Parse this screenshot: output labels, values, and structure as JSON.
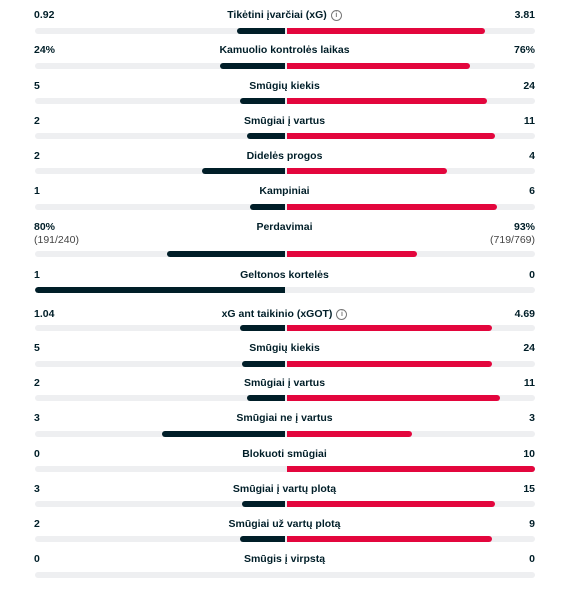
{
  "colors": {
    "home": "#001e28",
    "away": "#e3063d",
    "track": "#eeeff1"
  },
  "stats": [
    {
      "label": "Tikėtini įvarčiai (xG)",
      "home": "0.92",
      "away": "3.81",
      "home_share": 0.19,
      "away_share": 0.79,
      "info": true
    },
    {
      "label": "Kamuolio kontrolės laikas",
      "home": "24%",
      "away": "76%",
      "home_share": 0.26,
      "away_share": 0.73
    },
    {
      "label": "Smūgių kiekis",
      "home": "5",
      "away": "24",
      "home_share": 0.18,
      "away_share": 0.8
    },
    {
      "label": "Smūgiai į vartus",
      "home": "2",
      "away": "11",
      "home_share": 0.15,
      "away_share": 0.83
    },
    {
      "label": "Didelės progos",
      "home": "2",
      "away": "4",
      "home_share": 0.33,
      "away_share": 0.64
    },
    {
      "label": "Kampiniai",
      "home": "1",
      "away": "6",
      "home_share": 0.14,
      "away_share": 0.84
    },
    {
      "label": "Perdavimai",
      "home": "80%",
      "away": "93%",
      "home_sub": "(191/240)",
      "away_sub": "(719/769)",
      "home_share": 0.47,
      "away_share": 0.52
    },
    {
      "label": "Geltonos kortelės",
      "home": "1",
      "away": "0",
      "home_share": 1.0,
      "away_share": 0.0
    },
    {
      "label": "xG ant taikinio (xGOT)",
      "home": "1.04",
      "away": "4.69",
      "home_share": 0.18,
      "away_share": 0.82,
      "info": true
    },
    {
      "label": "Smūgių kiekis",
      "home": "5",
      "away": "24",
      "home_share": 0.17,
      "away_share": 0.82
    },
    {
      "label": "Smūgiai į vartus",
      "home": "2",
      "away": "11",
      "home_share": 0.15,
      "away_share": 0.85
    },
    {
      "label": "Smūgiai ne į vartus",
      "home": "3",
      "away": "3",
      "home_share": 0.49,
      "away_share": 0.5
    },
    {
      "label": "Blokuoti smūgiai",
      "home": "0",
      "away": "10",
      "home_share": 0.0,
      "away_share": 1.0
    },
    {
      "label": "Smūgiai į vartų plotą",
      "home": "3",
      "away": "15",
      "home_share": 0.17,
      "away_share": 0.83
    },
    {
      "label": "Smūgiai už vartų plotą",
      "home": "2",
      "away": "9",
      "home_share": 0.18,
      "away_share": 0.82
    },
    {
      "label": "Smūgis į virpstą",
      "home": "0",
      "away": "0",
      "home_share": 0.0,
      "away_share": 0.0
    }
  ]
}
